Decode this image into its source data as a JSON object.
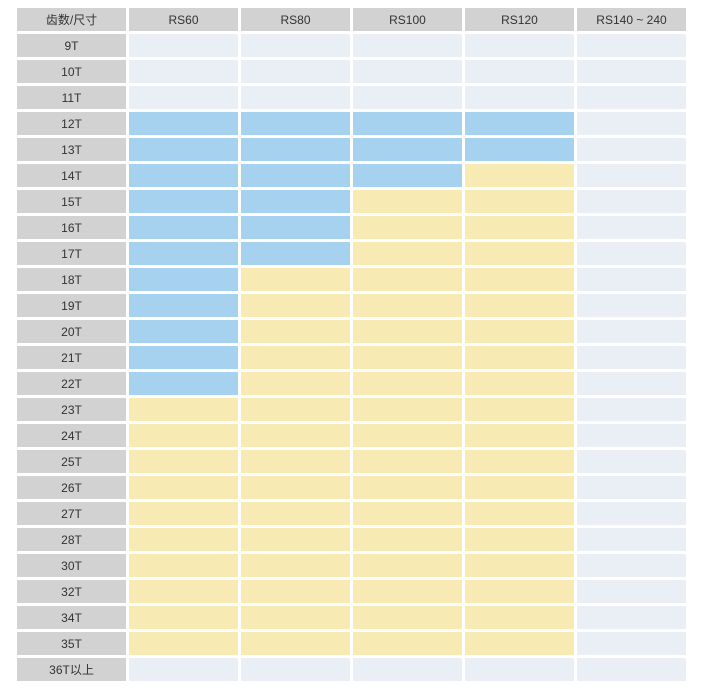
{
  "chart_data": {
    "type": "heatmap",
    "title": "",
    "row_header": "齿数/尺寸",
    "columns": [
      "RS60",
      "RS80",
      "RS100",
      "RS120",
      "RS140 ~ 240"
    ],
    "rows": [
      "9T",
      "10T",
      "11T",
      "12T",
      "13T",
      "14T",
      "15T",
      "16T",
      "17T",
      "18T",
      "19T",
      "20T",
      "21T",
      "22T",
      "23T",
      "24T",
      "25T",
      "26T",
      "27T",
      "28T",
      "30T",
      "32T",
      "34T",
      "35T",
      "36T以上"
    ],
    "cell_colors": {
      "blue": "#a6d2ef",
      "yellow": "#f8eab3",
      "plain": "#e9eff5",
      "header_gray": "#d2d2d2"
    },
    "matrix": [
      [
        "plain",
        "plain",
        "plain",
        "plain",
        "plain"
      ],
      [
        "plain",
        "plain",
        "plain",
        "plain",
        "plain"
      ],
      [
        "plain",
        "plain",
        "plain",
        "plain",
        "plain"
      ],
      [
        "blue",
        "blue",
        "blue",
        "blue",
        "plain"
      ],
      [
        "blue",
        "blue",
        "blue",
        "blue",
        "plain"
      ],
      [
        "blue",
        "blue",
        "blue",
        "yellow",
        "plain"
      ],
      [
        "blue",
        "blue",
        "yellow",
        "yellow",
        "plain"
      ],
      [
        "blue",
        "blue",
        "yellow",
        "yellow",
        "plain"
      ],
      [
        "blue",
        "blue",
        "yellow",
        "yellow",
        "plain"
      ],
      [
        "blue",
        "yellow",
        "yellow",
        "yellow",
        "plain"
      ],
      [
        "blue",
        "yellow",
        "yellow",
        "yellow",
        "plain"
      ],
      [
        "blue",
        "yellow",
        "yellow",
        "yellow",
        "plain"
      ],
      [
        "blue",
        "yellow",
        "yellow",
        "yellow",
        "plain"
      ],
      [
        "blue",
        "yellow",
        "yellow",
        "yellow",
        "plain"
      ],
      [
        "yellow",
        "yellow",
        "yellow",
        "yellow",
        "plain"
      ],
      [
        "yellow",
        "yellow",
        "yellow",
        "yellow",
        "plain"
      ],
      [
        "yellow",
        "yellow",
        "yellow",
        "yellow",
        "plain"
      ],
      [
        "yellow",
        "yellow",
        "yellow",
        "yellow",
        "plain"
      ],
      [
        "yellow",
        "yellow",
        "yellow",
        "yellow",
        "plain"
      ],
      [
        "yellow",
        "yellow",
        "yellow",
        "yellow",
        "plain"
      ],
      [
        "yellow",
        "yellow",
        "yellow",
        "yellow",
        "plain"
      ],
      [
        "yellow",
        "yellow",
        "yellow",
        "yellow",
        "plain"
      ],
      [
        "yellow",
        "yellow",
        "yellow",
        "yellow",
        "plain"
      ],
      [
        "yellow",
        "yellow",
        "yellow",
        "yellow",
        "plain"
      ],
      [
        "plain",
        "plain",
        "plain",
        "plain",
        "plain"
      ]
    ]
  }
}
